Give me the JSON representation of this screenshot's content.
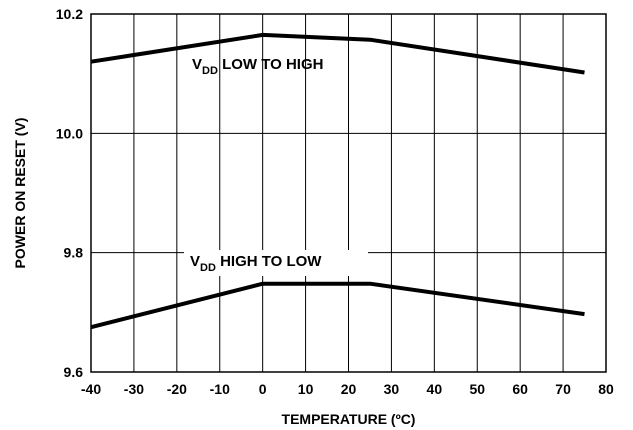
{
  "chart_data": {
    "type": "line",
    "title": "",
    "xlabel": "TEMPERATURE (ºC)",
    "ylabel": "POWER ON RESET (V)",
    "xlim": [
      -40,
      80
    ],
    "ylim": [
      9.6,
      10.2
    ],
    "xticks": [
      "-40",
      "-30",
      "-20",
      "-10",
      "0",
      "10",
      "20",
      "30",
      "40",
      "50",
      "60",
      "70",
      "80"
    ],
    "yticks": [
      "9.6",
      "9.8",
      "10.0",
      "10.2"
    ],
    "grid": true,
    "series": [
      {
        "label_main": "V",
        "label_sub": "DD",
        "label_rest": " LOW TO HIGH",
        "color": "#000000",
        "points": [
          [
            -40,
            10.12
          ],
          [
            0,
            10.165
          ],
          [
            25,
            10.157
          ],
          [
            75,
            10.102
          ]
        ]
      },
      {
        "label_main": "V",
        "label_sub": "DD",
        "label_rest": " HIGH TO LOW",
        "color": "#000000",
        "points": [
          [
            -40,
            9.675
          ],
          [
            0,
            9.748
          ],
          [
            25,
            9.748
          ],
          [
            75,
            9.697
          ]
        ]
      }
    ]
  }
}
